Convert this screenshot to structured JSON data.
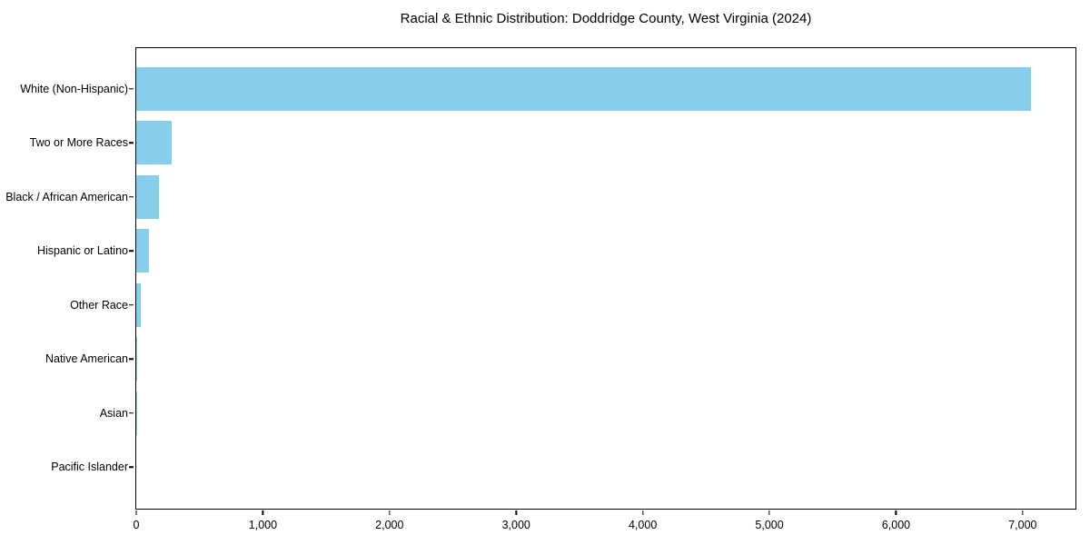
{
  "title": "Racial & Ethnic Distribution: Doddridge County, West Virginia (2024)",
  "chart_data": {
    "type": "bar",
    "orientation": "horizontal",
    "title": "Racial & Ethnic Distribution: Doddridge County, West Virginia (2024)",
    "categories": [
      "White (Non-Hispanic)",
      "Two or More Races",
      "Black / African American",
      "Hispanic or Latino",
      "Other Race",
      "Native American",
      "Asian",
      "Pacific Islander"
    ],
    "values": [
      7064,
      282,
      180,
      101,
      38,
      8,
      2,
      0
    ],
    "xlabel": "",
    "ylabel": "",
    "xlim": [
      0,
      7417
    ],
    "x_ticks": [
      {
        "value": 0,
        "label": "0"
      },
      {
        "value": 1000,
        "label": "1,000"
      },
      {
        "value": 2000,
        "label": "2,000"
      },
      {
        "value": 3000,
        "label": "3,000"
      },
      {
        "value": 4000,
        "label": "4,000"
      },
      {
        "value": 5000,
        "label": "5,000"
      },
      {
        "value": 6000,
        "label": "6,000"
      },
      {
        "value": 7000,
        "label": "7,000"
      }
    ],
    "grid": false,
    "legend": null,
    "bar_color": "#87CEEB",
    "frame_color": "#000000",
    "background_color": "#ffffff"
  }
}
